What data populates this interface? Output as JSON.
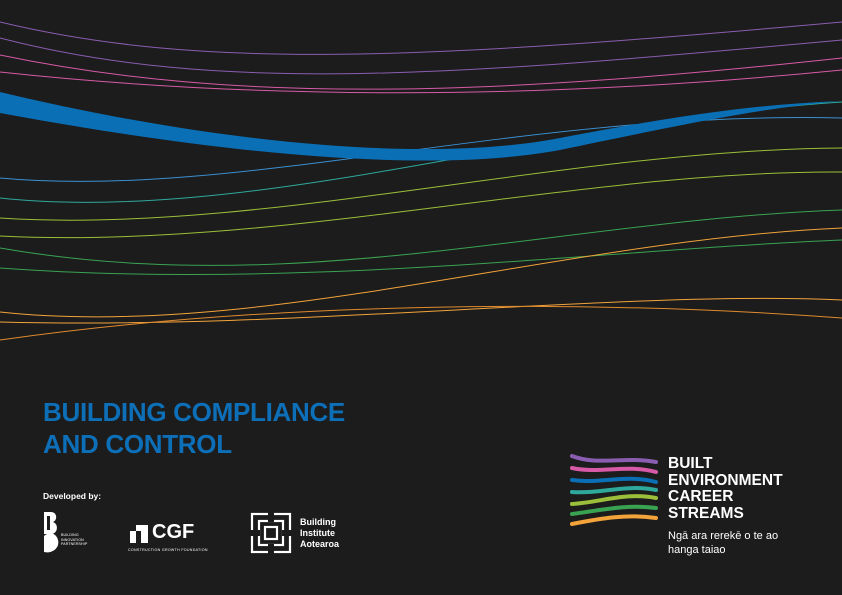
{
  "colors": {
    "background": "#1c1c1c",
    "title_blue": "#0d6fb8",
    "wave_blue": "#0a6fb5",
    "wave_pink": "#d75aa8",
    "wave_purple": "#8b5db0",
    "wave_teal": "#2fa89c",
    "wave_green": "#3aa352",
    "wave_olive": "#9bbf3a",
    "wave_orange": "#f2a33a"
  },
  "title": {
    "line1": "BUILDING COMPLIANCE",
    "line2": "AND CONTROL"
  },
  "developed_by_label": "Developed by:",
  "logos": {
    "bip": {
      "icon": "bip-logo-icon",
      "sub_line1": "BUILDING",
      "sub_line2": "INNOVATION",
      "sub_line3": "PARTNERSHIP"
    },
    "cgf": {
      "icon": "cgf-logo-icon",
      "text": "CGF",
      "sub": "CONSTRUCTION GROWTH FOUNDATION"
    },
    "bia": {
      "icon": "bia-logo-icon",
      "line1": "Building",
      "line2": "Institute",
      "line3": "Aotearoa"
    }
  },
  "becs": {
    "icon": "career-streams-wave-icon",
    "title_line1": "BUILT",
    "title_line2": "ENVIRONMENT",
    "title_line3": "CAREER",
    "title_line4": "STREAMS",
    "sub_line1": "Ngā ara rerekē o te ao",
    "sub_line2": "hanga taiao"
  }
}
